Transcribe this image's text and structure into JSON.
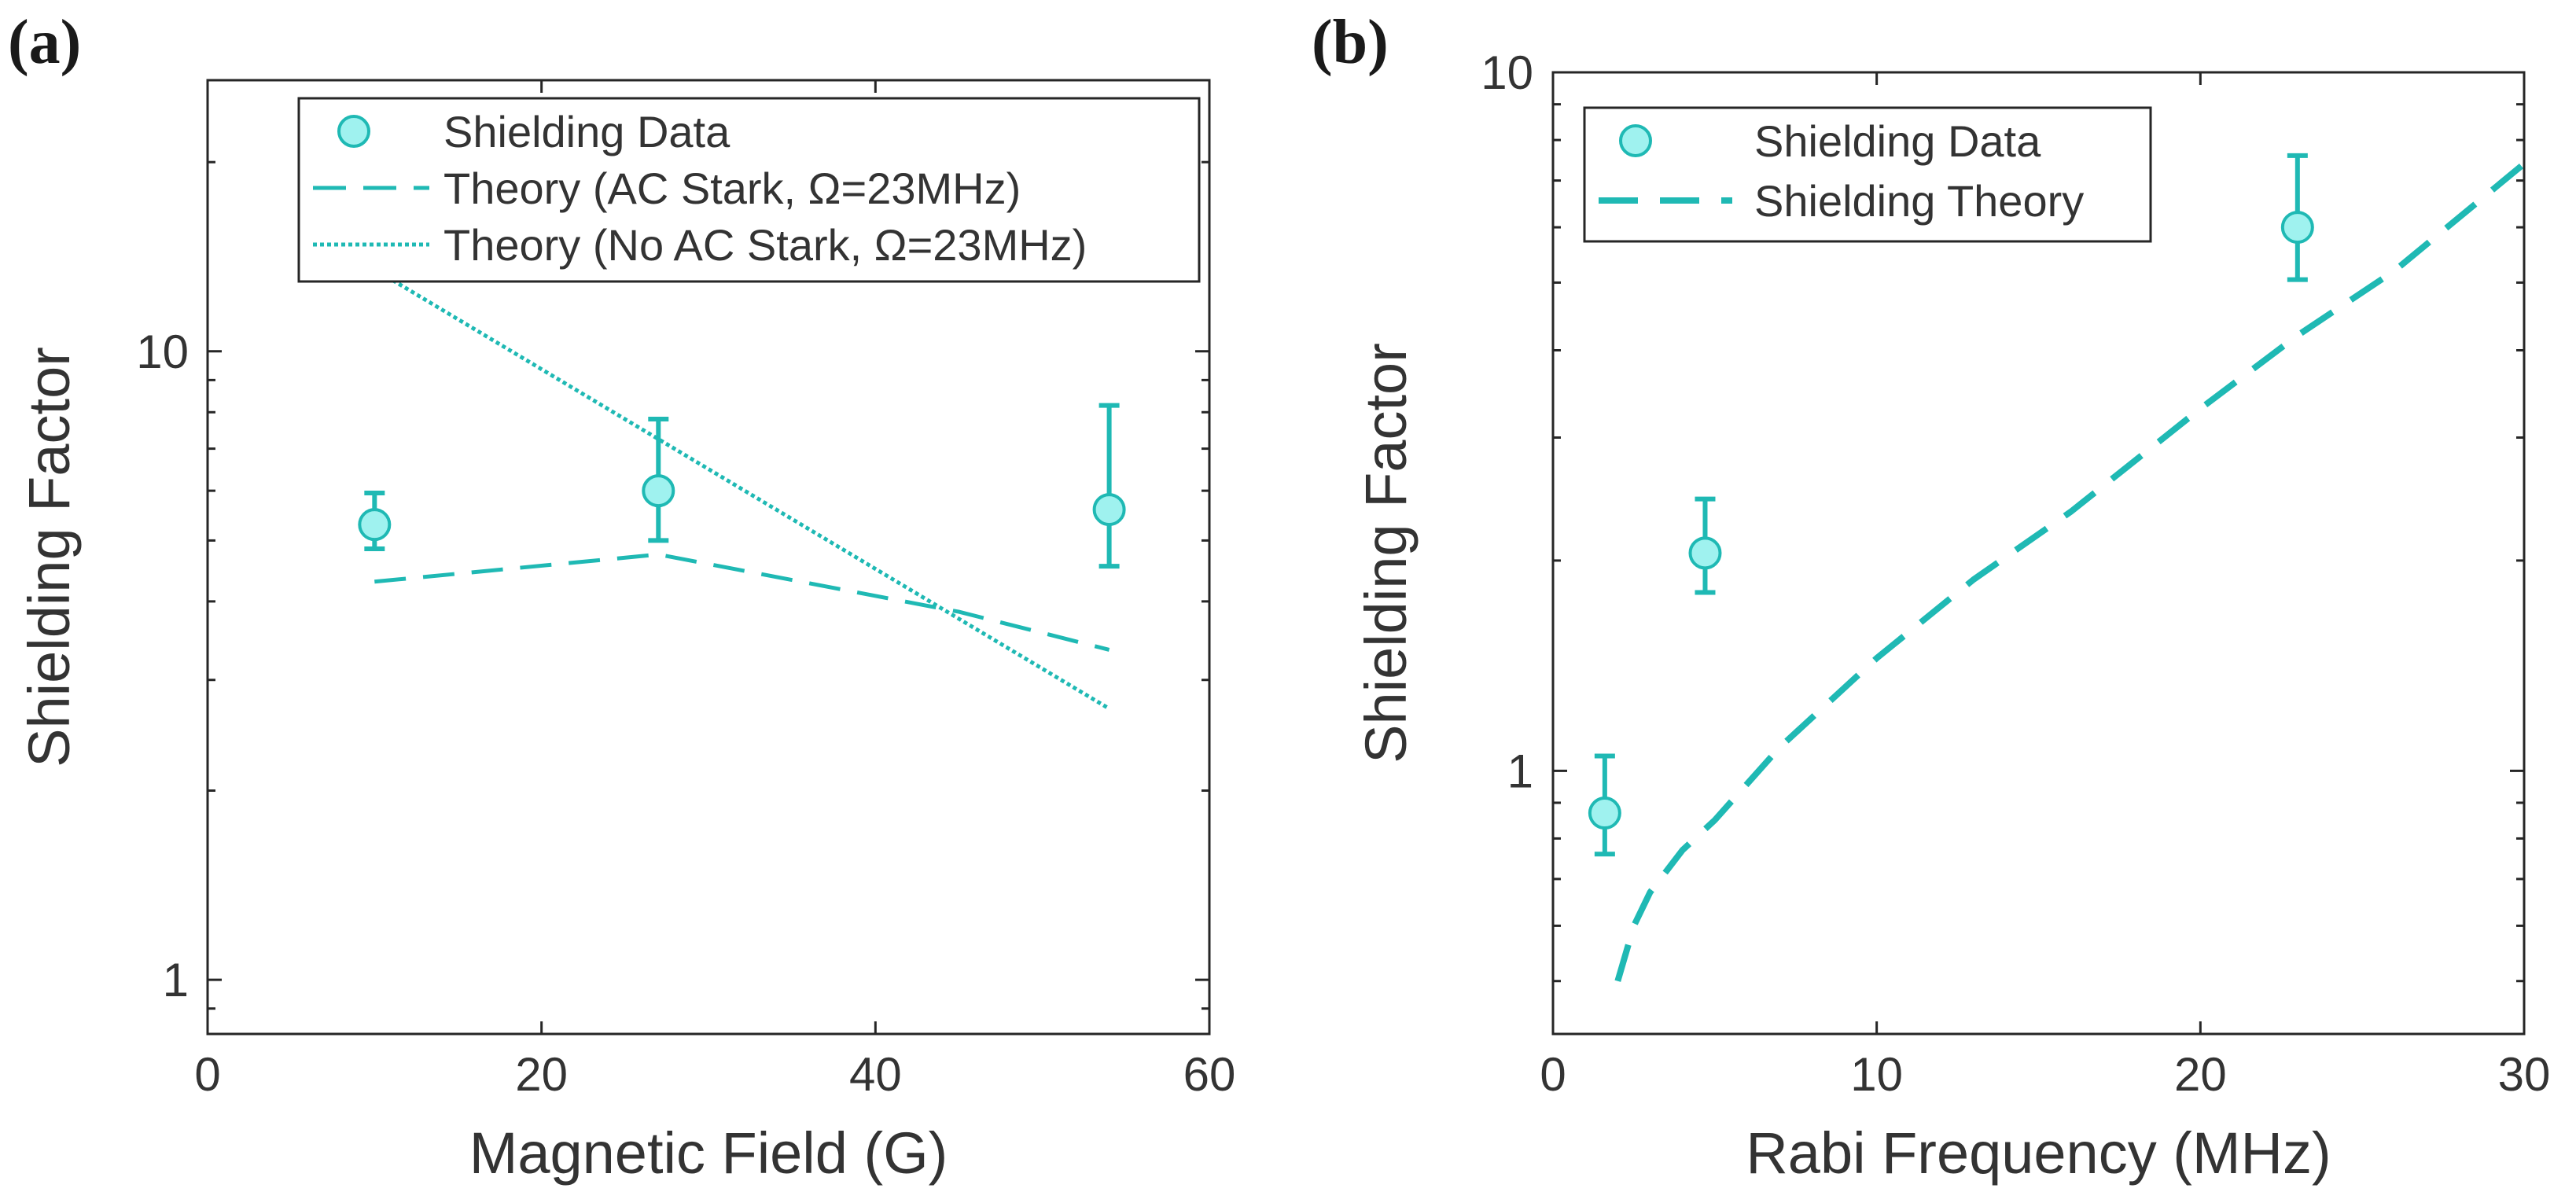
{
  "colors": {
    "series": "#1fb9b4",
    "marker_fill": "#9ff2ef",
    "axis": "#262626",
    "text": "#333333"
  },
  "chart_data": [
    {
      "panel": "(a)",
      "type": "scatter",
      "xlabel": "Magnetic Field (G)",
      "ylabel": "Shielding Factor",
      "xlim": [
        0,
        60
      ],
      "ylim": [
        0.82,
        27
      ],
      "yscale": "log",
      "xticks": [
        0,
        20,
        40,
        60
      ],
      "xtick_labels": [
        "0",
        "20",
        "40",
        "60"
      ],
      "yticks": [
        1,
        10
      ],
      "ytick_labels": [
        "1",
        "10"
      ],
      "legend": [
        "Shielding Data",
        "Theory (AC Stark, Ω=23MHz)",
        "Theory (No AC Stark, Ω=23MHz)"
      ],
      "legend_position": "top-right",
      "series": [
        {
          "name": "Shielding Data",
          "kind": "points",
          "x": [
            10,
            27,
            54
          ],
          "y": [
            5.3,
            6.0,
            5.6
          ],
          "yerr_low": [
            4.85,
            5.0,
            4.55
          ],
          "yerr_high": [
            5.95,
            7.8,
            8.2
          ]
        },
        {
          "name": "Theory (AC Stark, Ω=23MHz)",
          "kind": "dashed",
          "x": [
            10,
            27,
            45,
            54
          ],
          "y": [
            4.3,
            4.75,
            3.85,
            3.35
          ]
        },
        {
          "name": "Theory (No AC Stark, Ω=23MHz)",
          "kind": "dotted",
          "x": [
            10,
            54
          ],
          "y": [
            13.5,
            2.7
          ]
        }
      ]
    },
    {
      "panel": "(b)",
      "type": "scatter",
      "xlabel": "Rabi Frequency (MHz)",
      "ylabel": "Shielding Factor",
      "xlim": [
        0,
        30
      ],
      "ylim": [
        0.42,
        10
      ],
      "yscale": "log",
      "xticks": [
        0,
        10,
        20,
        30
      ],
      "xtick_labels": [
        "0",
        "10",
        "20",
        "30"
      ],
      "yticks": [
        1,
        10
      ],
      "ytick_labels": [
        "1",
        "10"
      ],
      "legend": [
        "Shielding Data",
        "Shielding Theory"
      ],
      "legend_position": "top-left",
      "series": [
        {
          "name": "Shielding Data",
          "kind": "points",
          "x": [
            1.6,
            4.7,
            23
          ],
          "y": [
            0.87,
            2.05,
            6.0
          ],
          "yerr_low": [
            0.76,
            1.8,
            5.05
          ],
          "yerr_high": [
            1.05,
            2.45,
            7.6
          ]
        },
        {
          "name": "Shielding Theory",
          "kind": "dashed",
          "x": [
            2,
            2.5,
            3,
            4,
            5,
            7,
            10,
            13,
            16,
            20,
            23,
            26,
            30
          ],
          "y": [
            0.5,
            0.6,
            0.67,
            0.77,
            0.85,
            1.08,
            1.45,
            1.88,
            2.35,
            3.3,
            4.2,
            5.2,
            7.4
          ]
        }
      ]
    }
  ]
}
